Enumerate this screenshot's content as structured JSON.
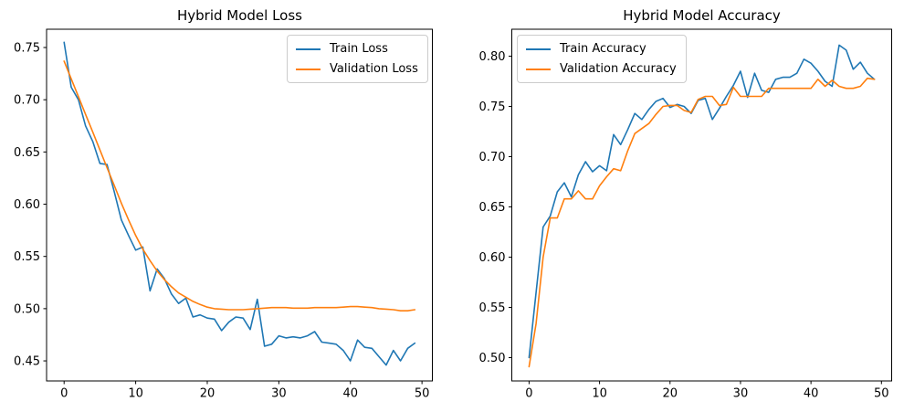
{
  "figure": {
    "background": "#ffffff",
    "text_color": "#000000",
    "spine_color": "#000000",
    "legend_border_color": "#cccccc"
  },
  "chart_data": [
    {
      "type": "line",
      "title": "Hybrid Model Loss",
      "xlabel": "",
      "ylabel": "",
      "xlim": [
        -2.45,
        51.45
      ],
      "ylim": [
        0.4308,
        0.7675
      ],
      "grid": false,
      "legend_position": "upper-right",
      "x_tick_values": [
        0,
        10,
        20,
        30,
        40,
        50
      ],
      "x_tick_labels": [
        "0",
        "10",
        "20",
        "30",
        "40",
        "50"
      ],
      "y_tick_values": [
        0.45,
        0.5,
        0.55,
        0.6,
        0.65,
        0.7,
        0.75
      ],
      "y_tick_labels": [
        "0.45",
        "0.50",
        "0.55",
        "0.60",
        "0.65",
        "0.70",
        "0.75"
      ],
      "x": "epoch index 0-49",
      "series": [
        {
          "name": "Train Loss",
          "color": "#1f77b4",
          "values": [
            0.755,
            0.712,
            0.7,
            0.675,
            0.66,
            0.639,
            0.638,
            0.612,
            0.585,
            0.57,
            0.556,
            0.559,
            0.517,
            0.538,
            0.529,
            0.514,
            0.505,
            0.51,
            0.492,
            0.494,
            0.491,
            0.49,
            0.479,
            0.487,
            0.492,
            0.491,
            0.48,
            0.509,
            0.464,
            0.466,
            0.474,
            0.472,
            0.473,
            0.472,
            0.474,
            0.478,
            0.468,
            0.467,
            0.466,
            0.46,
            0.45,
            0.47,
            0.463,
            0.462,
            0.454,
            0.446,
            0.46,
            0.45,
            0.462,
            0.467
          ]
        },
        {
          "name": "Validation Loss",
          "color": "#ff7f0e",
          "values": [
            0.737,
            0.72,
            0.703,
            0.686,
            0.669,
            0.652,
            0.635,
            0.618,
            0.601,
            0.585,
            0.57,
            0.557,
            0.546,
            0.536,
            0.528,
            0.521,
            0.515,
            0.511,
            0.507,
            0.504,
            0.5015,
            0.5,
            0.4995,
            0.499,
            0.499,
            0.499,
            0.4995,
            0.5,
            0.5005,
            0.501,
            0.501,
            0.501,
            0.5005,
            0.5005,
            0.5005,
            0.501,
            0.501,
            0.501,
            0.501,
            0.5015,
            0.502,
            0.502,
            0.5015,
            0.501,
            0.5,
            0.4995,
            0.499,
            0.498,
            0.498,
            0.499
          ]
        }
      ]
    },
    {
      "type": "line",
      "title": "Hybrid Model Accuracy",
      "xlabel": "",
      "ylabel": "",
      "xlim": [
        -2.45,
        51.45
      ],
      "ylim": [
        0.4768,
        0.8268
      ],
      "grid": false,
      "legend_position": "upper-left",
      "x_tick_values": [
        0,
        10,
        20,
        30,
        40,
        50
      ],
      "x_tick_labels": [
        "0",
        "10",
        "20",
        "30",
        "40",
        "50"
      ],
      "y_tick_values": [
        0.5,
        0.55,
        0.6,
        0.65,
        0.7,
        0.75,
        0.8
      ],
      "y_tick_labels": [
        "0.50",
        "0.55",
        "0.60",
        "0.65",
        "0.70",
        "0.75",
        "0.80"
      ],
      "x": "epoch index 0-49",
      "series": [
        {
          "name": "Train Accuracy",
          "color": "#1f77b4",
          "values": [
            0.5,
            0.565,
            0.63,
            0.641,
            0.665,
            0.674,
            0.66,
            0.682,
            0.695,
            0.685,
            0.691,
            0.686,
            0.722,
            0.712,
            0.727,
            0.743,
            0.737,
            0.747,
            0.755,
            0.758,
            0.749,
            0.752,
            0.75,
            0.743,
            0.756,
            0.758,
            0.737,
            0.748,
            0.76,
            0.771,
            0.785,
            0.759,
            0.783,
            0.766,
            0.764,
            0.777,
            0.779,
            0.779,
            0.783,
            0.797,
            0.793,
            0.785,
            0.775,
            0.77,
            0.811,
            0.806,
            0.787,
            0.794,
            0.783,
            0.777
          ]
        },
        {
          "name": "Validation Accuracy",
          "color": "#ff7f0e",
          "values": [
            0.491,
            0.534,
            0.6,
            0.639,
            0.639,
            0.658,
            0.658,
            0.666,
            0.658,
            0.658,
            0.671,
            0.68,
            0.688,
            0.686,
            0.706,
            0.723,
            0.728,
            0.733,
            0.742,
            0.75,
            0.751,
            0.751,
            0.746,
            0.744,
            0.757,
            0.76,
            0.76,
            0.751,
            0.752,
            0.769,
            0.76,
            0.76,
            0.76,
            0.76,
            0.768,
            0.768,
            0.768,
            0.768,
            0.768,
            0.768,
            0.768,
            0.777,
            0.77,
            0.776,
            0.77,
            0.768,
            0.768,
            0.77,
            0.778,
            0.777
          ]
        }
      ]
    }
  ]
}
